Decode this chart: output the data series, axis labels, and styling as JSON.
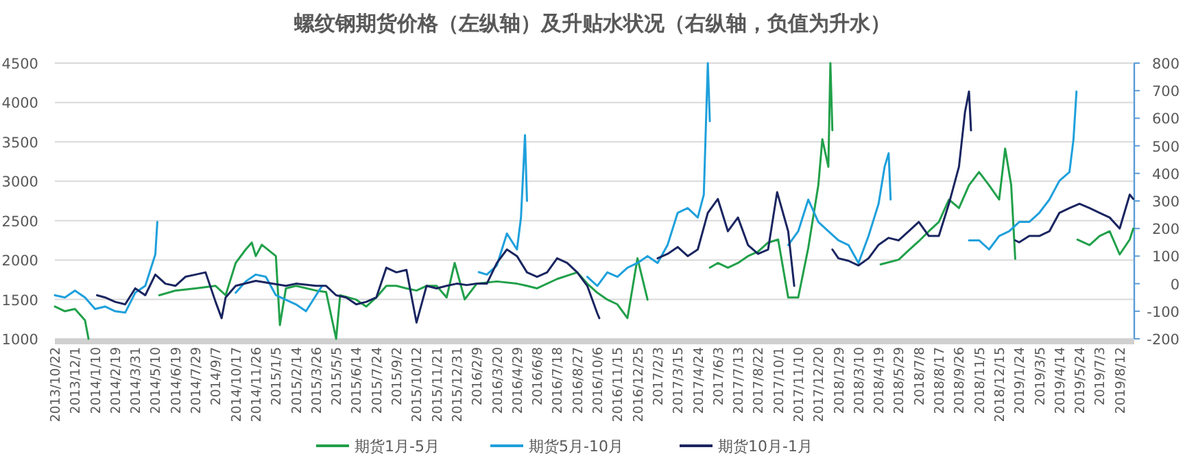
{
  "chart_data": {
    "type": "line",
    "title": "螺纹钢期货价格（左纵轴）及升贴水状况（右纵轴，负值为升水）",
    "xlim": [
      "2013-10-22",
      "2019-09-10"
    ],
    "xticks": [
      {
        "value": "2013-10-22",
        "label": "2013/10/22"
      },
      {
        "value": "2013-12-01",
        "label": "2013/12/1"
      },
      {
        "value": "2014-01-10",
        "label": "2014/1/10"
      },
      {
        "value": "2014-02-19",
        "label": "2014/2/19"
      },
      {
        "value": "2014-03-31",
        "label": "2014/3/31"
      },
      {
        "value": "2014-05-10",
        "label": "2014/5/10"
      },
      {
        "value": "2014-06-19",
        "label": "2014/6/19"
      },
      {
        "value": "2014-07-29",
        "label": "2014/7/29"
      },
      {
        "value": "2014-09-07",
        "label": "2014/9/7"
      },
      {
        "value": "2014-10-17",
        "label": "2014/10/17"
      },
      {
        "value": "2014-11-26",
        "label": "2014/11/26"
      },
      {
        "value": "2015-01-05",
        "label": "2015/1/5"
      },
      {
        "value": "2015-02-14",
        "label": "2015/2/14"
      },
      {
        "value": "2015-03-26",
        "label": "2015/3/26"
      },
      {
        "value": "2015-05-05",
        "label": "2015/5/5"
      },
      {
        "value": "2015-06-14",
        "label": "2015/6/14"
      },
      {
        "value": "2015-07-24",
        "label": "2015/7/24"
      },
      {
        "value": "2015-09-02",
        "label": "2015/9/2"
      },
      {
        "value": "2015-10-12",
        "label": "2015/10/12"
      },
      {
        "value": "2015-11-21",
        "label": "2015/11/21"
      },
      {
        "value": "2015-12-31",
        "label": "2015/12/31"
      },
      {
        "value": "2016-02-09",
        "label": "2016/2/9"
      },
      {
        "value": "2016-03-20",
        "label": "2016/3/20"
      },
      {
        "value": "2016-04-29",
        "label": "2016/4/29"
      },
      {
        "value": "2016-06-08",
        "label": "2016/6/8"
      },
      {
        "value": "2016-07-18",
        "label": "2016/7/18"
      },
      {
        "value": "2016-08-27",
        "label": "2016/8/27"
      },
      {
        "value": "2016-10-06",
        "label": "2016/10/6"
      },
      {
        "value": "2016-11-15",
        "label": "2016/11/15"
      },
      {
        "value": "2016-12-25",
        "label": "2016/12/25"
      },
      {
        "value": "2017-02-03",
        "label": "2017/2/3"
      },
      {
        "value": "2017-03-15",
        "label": "2017/3/15"
      },
      {
        "value": "2017-04-24",
        "label": "2017/4/24"
      },
      {
        "value": "2017-06-03",
        "label": "2017/6/3"
      },
      {
        "value": "2017-07-13",
        "label": "2017/7/13"
      },
      {
        "value": "2017-08-22",
        "label": "2017/8/22"
      },
      {
        "value": "2017-10-01",
        "label": "2017/10/1"
      },
      {
        "value": "2017-11-10",
        "label": "2017/11/10"
      },
      {
        "value": "2017-12-20",
        "label": "2017/12/20"
      },
      {
        "value": "2018-01-29",
        "label": "2018/1/29"
      },
      {
        "value": "2018-03-10",
        "label": "2018/3/10"
      },
      {
        "value": "2018-04-19",
        "label": "2018/4/19"
      },
      {
        "value": "2018-05-29",
        "label": "2018/5/29"
      },
      {
        "value": "2018-07-08",
        "label": "2018/7/8"
      },
      {
        "value": "2018-08-17",
        "label": "2018/8/17"
      },
      {
        "value": "2018-09-26",
        "label": "2018/9/26"
      },
      {
        "value": "2018-11-05",
        "label": "2018/11/5"
      },
      {
        "value": "2018-12-15",
        "label": "2018/12/15"
      },
      {
        "value": "2019-01-24",
        "label": "2019/1/24"
      },
      {
        "value": "2019-03-05",
        "label": "2019/3/5"
      },
      {
        "value": "2019-04-14",
        "label": "2019/4/14"
      },
      {
        "value": "2019-05-24",
        "label": "2019/5/24"
      },
      {
        "value": "2019-07-03",
        "label": "2019/7/3"
      },
      {
        "value": "2019-08-12",
        "label": "2019/8/12"
      }
    ],
    "ylim": [
      1000,
      4500
    ],
    "yticks": [
      1000,
      1500,
      2000,
      2500,
      3000,
      3500,
      4000,
      4500
    ],
    "y2lim": [
      -200,
      800
    ],
    "y2ticks": [
      -200,
      -100,
      0,
      100,
      200,
      300,
      400,
      500,
      600,
      700,
      800
    ],
    "grid": "y",
    "legend": "bottom",
    "line_style": "solid",
    "series": [
      {
        "name": "期货1月-5月",
        "color": "#21a04a",
        "axis": "y2",
        "x": [
          "2013-10-22",
          "2013-11-11",
          "2013-12-01",
          "2013-12-21",
          "2013-12-28",
          "2014-03-01",
          "2014-05-18",
          "2014-06-19",
          "2014-07-29",
          "2014-09-07",
          "2014-09-27",
          "2014-10-17",
          "2014-11-06",
          "2014-11-18",
          "2014-11-26",
          "2014-12-08",
          "2015-01-05",
          "2015-01-13",
          "2015-01-25",
          "2015-02-14",
          "2015-03-26",
          "2015-04-15",
          "2015-05-05",
          "2015-05-13",
          "2015-06-14",
          "2015-07-04",
          "2015-07-24",
          "2015-08-13",
          "2015-09-02",
          "2015-09-22",
          "2015-10-12",
          "2015-11-01",
          "2015-11-21",
          "2015-12-11",
          "2015-12-27",
          "2016-01-16",
          "2016-02-09",
          "2016-03-20",
          "2016-04-29",
          "2016-05-19",
          "2016-06-08",
          "2016-07-18",
          "2016-08-27",
          "2016-09-16",
          "2016-10-06",
          "2016-10-26",
          "2016-11-15",
          "2016-12-05",
          "2016-12-25",
          "2017-01-14",
          "2017-03-01",
          "2017-05-18",
          "2017-06-03",
          "2017-06-23",
          "2017-07-13",
          "2017-08-02",
          "2017-08-22",
          "2017-09-11",
          "2017-10-01",
          "2017-10-21",
          "2017-11-10",
          "2017-11-30",
          "2017-12-20",
          "2017-12-28",
          "2018-01-09",
          "2018-01-13",
          "2018-01-17",
          "2018-03-01",
          "2018-04-23",
          "2018-05-29",
          "2018-06-18",
          "2018-07-08",
          "2018-07-28",
          "2018-08-17",
          "2018-09-06",
          "2018-09-26",
          "2018-10-16",
          "2018-11-05",
          "2018-11-25",
          "2018-12-15",
          "2018-12-27",
          "2019-01-08",
          "2019-01-16",
          "2019-03-01",
          "2019-05-20",
          "2019-06-13",
          "2019-07-03",
          "2019-07-23",
          "2019-08-12",
          "2019-09-01",
          "2019-09-08"
        ],
        "values": [
          -83,
          -100,
          -92,
          -133,
          -200,
          null,
          -42,
          -25,
          -17,
          -8,
          -42,
          75,
          124,
          149,
          100,
          141,
          100,
          -150,
          -17,
          -8,
          -25,
          -30,
          -200,
          -42,
          -58,
          -83,
          -50,
          -8,
          -8,
          -17,
          -25,
          -8,
          -8,
          -50,
          75,
          -57,
          0,
          8,
          0,
          -8,
          -17,
          17,
          41,
          0,
          -33,
          -58,
          -75,
          -125,
          92,
          -58,
          null,
          58,
          75,
          58,
          75,
          100,
          116,
          149,
          160,
          -50,
          -50,
          130,
          357,
          524,
          424,
          800,
          556,
          null,
          70,
          87,
          121,
          154,
          190,
          224,
          305,
          274,
          357,
          405,
          357,
          305,
          490,
          357,
          90,
          null,
          160,
          140,
          173,
          190,
          106,
          160,
          200
        ]
      },
      {
        "name": "期货5月-10月",
        "color": "#1ea0dc",
        "axis": "y2",
        "x": [
          "2013-10-22",
          "2013-11-11",
          "2013-12-01",
          "2013-12-21",
          "2014-01-10",
          "2014-01-30",
          "2014-02-19",
          "2014-03-11",
          "2014-03-31",
          "2014-04-20",
          "2014-05-10",
          "2014-05-14",
          "2014-08-01",
          "2014-10-17",
          "2014-11-06",
          "2014-11-26",
          "2014-12-16",
          "2015-01-05",
          "2015-02-14",
          "2015-03-06",
          "2015-03-26",
          "2015-04-07",
          "2015-09-01",
          "2016-02-13",
          "2016-02-29",
          "2016-03-20",
          "2016-04-09",
          "2016-04-29",
          "2016-05-07",
          "2016-05-15",
          "2016-05-19",
          "2016-07-15",
          "2016-09-16",
          "2016-10-06",
          "2016-10-26",
          "2016-11-15",
          "2016-12-05",
          "2016-12-25",
          "2017-01-14",
          "2017-02-03",
          "2017-02-23",
          "2017-03-15",
          "2017-04-04",
          "2017-04-24",
          "2017-05-06",
          "2017-05-14",
          "2017-05-18",
          "2017-08-01",
          "2017-10-21",
          "2017-11-10",
          "2017-11-30",
          "2017-12-20",
          "2018-01-09",
          "2018-01-29",
          "2018-02-18",
          "2018-03-10",
          "2018-03-30",
          "2018-04-19",
          "2018-05-01",
          "2018-05-09",
          "2018-05-13",
          "2018-08-01",
          "2018-10-16",
          "2018-11-05",
          "2018-11-25",
          "2018-12-15",
          "2019-01-04",
          "2019-01-24",
          "2019-02-13",
          "2019-03-05",
          "2019-03-25",
          "2019-04-14",
          "2019-05-04",
          "2019-05-12",
          "2019-05-18"
        ],
        "values": [
          -42,
          -50,
          -25,
          -50,
          -92,
          -83,
          -100,
          -105,
          -33,
          -8,
          106,
          224,
          null,
          -33,
          8,
          33,
          25,
          -42,
          -75,
          -100,
          -42,
          -8,
          null,
          42,
          33,
          66,
          182,
          124,
          240,
          539,
          300,
          null,
          25,
          -8,
          41,
          25,
          58,
          75,
          100,
          75,
          141,
          257,
          274,
          240,
          323,
          800,
          589,
          null,
          140,
          190,
          305,
          224,
          190,
          157,
          140,
          75,
          173,
          290,
          424,
          473,
          305,
          null,
          157,
          157,
          124,
          173,
          190,
          224,
          224,
          257,
          305,
          373,
          405,
          523,
          697
        ]
      },
      {
        "name": "期货10月-1月",
        "color": "#1a2560",
        "axis": "y2",
        "x": [
          "2014-01-14",
          "2014-01-30",
          "2014-02-19",
          "2014-03-11",
          "2014-03-31",
          "2014-04-20",
          "2014-05-10",
          "2014-05-30",
          "2014-06-19",
          "2014-07-09",
          "2014-07-29",
          "2014-08-18",
          "2014-09-07",
          "2014-09-19",
          "2014-09-27",
          "2014-10-17",
          "2014-11-26",
          "2015-01-25",
          "2015-02-14",
          "2015-03-26",
          "2015-04-15",
          "2015-05-05",
          "2015-05-25",
          "2015-06-14",
          "2015-07-04",
          "2015-07-24",
          "2015-08-13",
          "2015-09-02",
          "2015-09-22",
          "2015-10-12",
          "2015-11-01",
          "2015-11-21",
          "2015-12-11",
          "2015-12-31",
          "2016-01-20",
          "2016-02-09",
          "2016-02-29",
          "2016-03-20",
          "2016-04-09",
          "2016-04-29",
          "2016-05-19",
          "2016-06-08",
          "2016-06-28",
          "2016-07-18",
          "2016-08-07",
          "2016-08-27",
          "2016-09-16",
          "2016-10-06",
          "2016-10-10",
          "2016-12-01",
          "2017-02-03",
          "2017-02-23",
          "2017-03-15",
          "2017-04-04",
          "2017-04-24",
          "2017-05-14",
          "2017-06-03",
          "2017-06-23",
          "2017-07-13",
          "2017-08-02",
          "2017-08-22",
          "2017-09-11",
          "2017-09-29",
          "2017-10-21",
          "2017-11-02",
          "2017-12-01",
          "2018-01-17",
          "2018-01-29",
          "2018-02-18",
          "2018-03-10",
          "2018-03-30",
          "2018-04-19",
          "2018-05-09",
          "2018-05-29",
          "2018-06-18",
          "2018-07-08",
          "2018-07-28",
          "2018-08-17",
          "2018-09-06",
          "2018-09-26",
          "2018-10-08",
          "2018-10-16",
          "2018-10-20",
          "2018-12-01",
          "2019-01-16",
          "2019-01-24",
          "2019-02-13",
          "2019-03-05",
          "2019-03-25",
          "2019-04-14",
          "2019-05-04",
          "2019-05-24",
          "2019-06-13",
          "2019-07-03",
          "2019-07-23",
          "2019-08-12",
          "2019-09-01",
          "2019-09-08"
        ],
        "values": [
          -42,
          -50,
          -66,
          -75,
          -17,
          -42,
          33,
          0,
          -8,
          25,
          33,
          41,
          -66,
          -125,
          -50,
          -8,
          10,
          -8,
          0,
          -8,
          -8,
          -42,
          -50,
          -75,
          -66,
          -50,
          58,
          41,
          50,
          -141,
          -8,
          -17,
          -8,
          0,
          -5,
          0,
          0,
          75,
          124,
          100,
          41,
          25,
          41,
          92,
          75,
          41,
          -8,
          -108,
          -125,
          null,
          92,
          108,
          133,
          100,
          124,
          257,
          307,
          190,
          240,
          140,
          108,
          124,
          332,
          190,
          -8,
          null,
          124,
          92,
          83,
          66,
          92,
          141,
          166,
          157,
          190,
          224,
          173,
          173,
          290,
          424,
          622,
          697,
          556,
          null,
          157,
          150,
          173,
          173,
          190,
          257,
          274,
          290,
          274,
          257,
          240,
          200,
          323,
          307
        ]
      }
    ]
  }
}
